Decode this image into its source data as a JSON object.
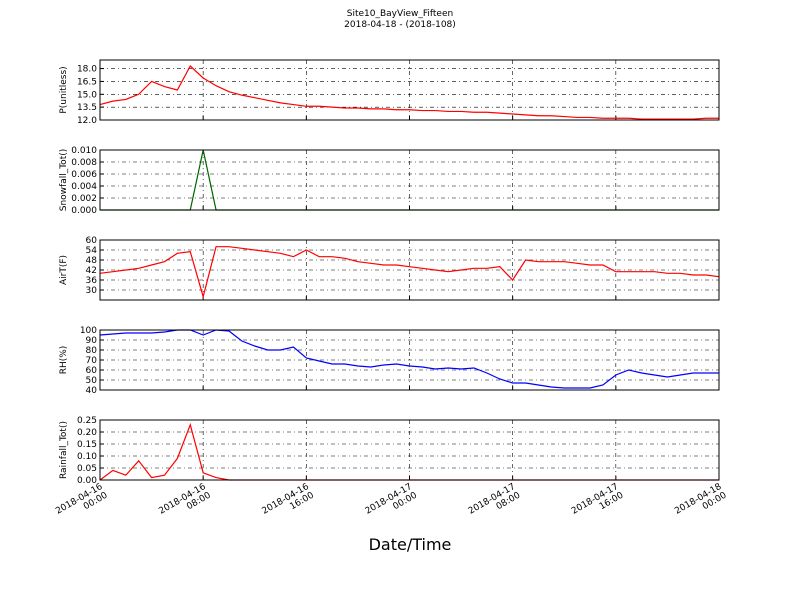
{
  "chart_data": [
    {
      "type": "line",
      "title": "Site10_BayView_Fifteen",
      "subtitle": "2018-04-18 - (2018-108)",
      "ylabel": "P(unitless)",
      "grid": true,
      "xlim": [
        "2018-04-16 00:00",
        "2018-04-18 00:00"
      ],
      "ylim": [
        12,
        19
      ],
      "yticks": [
        {
          "value": 12,
          "label": "12.0"
        },
        13.5,
        {
          "value": 15,
          "label": "15.0"
        },
        16.5,
        {
          "value": 18,
          "label": "18.0"
        }
      ],
      "x": [
        "2018-04-16 00:00",
        "2018-04-16 01:00",
        "2018-04-16 02:00",
        "2018-04-16 03:00",
        "2018-04-16 04:00",
        "2018-04-16 05:00",
        "2018-04-16 06:00",
        "2018-04-16 07:00",
        "2018-04-16 08:00",
        "2018-04-16 09:00",
        "2018-04-16 10:00",
        "2018-04-16 11:00",
        "2018-04-16 12:00",
        "2018-04-16 13:00",
        "2018-04-16 14:00",
        "2018-04-16 15:00",
        "2018-04-16 16:00",
        "2018-04-16 17:00",
        "2018-04-16 18:00",
        "2018-04-16 19:00",
        "2018-04-16 20:00",
        "2018-04-16 21:00",
        "2018-04-16 22:00",
        "2018-04-16 23:00",
        "2018-04-17 00:00",
        "2018-04-17 01:00",
        "2018-04-17 02:00",
        "2018-04-17 03:00",
        "2018-04-17 04:00",
        "2018-04-17 05:00",
        "2018-04-17 06:00",
        "2018-04-17 07:00",
        "2018-04-17 08:00",
        "2018-04-17 09:00",
        "2018-04-17 10:00",
        "2018-04-17 11:00",
        "2018-04-17 12:00",
        "2018-04-17 13:00",
        "2018-04-17 14:00",
        "2018-04-17 15:00",
        "2018-04-17 16:00",
        "2018-04-17 17:00",
        "2018-04-17 18:00",
        "2018-04-17 19:00",
        "2018-04-17 20:00",
        "2018-04-17 21:00",
        "2018-04-17 22:00",
        "2018-04-17 23:00",
        "2018-04-18 00:00"
      ],
      "series": [
        {
          "name": "P",
          "color": "#ff0000",
          "values": [
            13.8,
            14.2,
            14.4,
            15.0,
            16.5,
            15.9,
            15.5,
            18.3,
            16.9,
            16.0,
            15.3,
            14.9,
            14.6,
            14.3,
            14.0,
            13.8,
            13.6,
            13.6,
            13.5,
            13.4,
            13.4,
            13.3,
            13.3,
            13.2,
            13.2,
            13.1,
            13.1,
            13.0,
            13.0,
            12.9,
            12.9,
            12.8,
            12.7,
            12.6,
            12.5,
            12.5,
            12.4,
            12.3,
            12.3,
            12.2,
            12.2,
            12.2,
            12.1,
            12.1,
            12.1,
            12.1,
            12.1,
            12.2,
            12.2
          ]
        }
      ]
    },
    {
      "type": "line",
      "ylabel": "Snowfall_Tot()",
      "grid": true,
      "xlim": [
        "2018-04-16 00:00",
        "2018-04-18 00:00"
      ],
      "ylim": [
        0,
        0.01
      ],
      "yticks": [
        {
          "value": 0,
          "label": "0.000"
        },
        {
          "value": 0.002,
          "label": "0.002"
        },
        {
          "value": 0.004,
          "label": "0.004"
        },
        {
          "value": 0.006,
          "label": "0.006"
        },
        {
          "value": 0.008,
          "label": "0.008"
        },
        {
          "value": 0.01,
          "label": "0.010"
        }
      ],
      "x": [
        "2018-04-16 00:00",
        "2018-04-16 01:00",
        "2018-04-16 02:00",
        "2018-04-16 03:00",
        "2018-04-16 04:00",
        "2018-04-16 05:00",
        "2018-04-16 06:00",
        "2018-04-16 07:00",
        "2018-04-16 08:00",
        "2018-04-16 09:00",
        "2018-04-16 10:00",
        "2018-04-16 11:00",
        "2018-04-16 12:00",
        "2018-04-16 13:00",
        "2018-04-16 14:00",
        "2018-04-16 15:00",
        "2018-04-16 16:00",
        "2018-04-16 17:00",
        "2018-04-16 18:00",
        "2018-04-16 19:00",
        "2018-04-16 20:00",
        "2018-04-16 21:00",
        "2018-04-16 22:00",
        "2018-04-16 23:00",
        "2018-04-17 00:00",
        "2018-04-17 01:00",
        "2018-04-17 02:00",
        "2018-04-17 03:00",
        "2018-04-17 04:00",
        "2018-04-17 05:00",
        "2018-04-17 06:00",
        "2018-04-17 07:00",
        "2018-04-17 08:00",
        "2018-04-17 09:00",
        "2018-04-17 10:00",
        "2018-04-17 11:00",
        "2018-04-17 12:00",
        "2018-04-17 13:00",
        "2018-04-17 14:00",
        "2018-04-17 15:00",
        "2018-04-17 16:00",
        "2018-04-17 17:00",
        "2018-04-17 18:00",
        "2018-04-17 19:00",
        "2018-04-17 20:00",
        "2018-04-17 21:00",
        "2018-04-17 22:00",
        "2018-04-17 23:00",
        "2018-04-18 00:00"
      ],
      "series": [
        {
          "name": "Snowfall_Tot",
          "color": "#006400",
          "values": [
            0,
            0,
            0,
            0,
            0,
            0,
            0,
            0,
            0.01,
            0,
            0,
            0,
            0,
            0,
            0,
            0,
            0,
            0,
            0,
            0,
            0,
            0,
            0,
            0,
            0,
            0,
            0,
            0,
            0,
            0,
            0,
            0,
            0,
            0,
            0,
            0,
            0,
            0,
            0,
            0,
            0,
            0,
            0,
            0,
            0,
            0,
            0,
            0,
            0
          ]
        }
      ]
    },
    {
      "type": "line",
      "ylabel": "AirT(F)",
      "grid": true,
      "xlim": [
        "2018-04-16 00:00",
        "2018-04-18 00:00"
      ],
      "ylim": [
        24,
        60
      ],
      "yticks": [
        30,
        36,
        42,
        48,
        54,
        60
      ],
      "x": [
        "2018-04-16 00:00",
        "2018-04-16 01:00",
        "2018-04-16 02:00",
        "2018-04-16 03:00",
        "2018-04-16 04:00",
        "2018-04-16 05:00",
        "2018-04-16 06:00",
        "2018-04-16 07:00",
        "2018-04-16 08:00",
        "2018-04-16 09:00",
        "2018-04-16 10:00",
        "2018-04-16 11:00",
        "2018-04-16 12:00",
        "2018-04-16 13:00",
        "2018-04-16 14:00",
        "2018-04-16 15:00",
        "2018-04-16 16:00",
        "2018-04-16 17:00",
        "2018-04-16 18:00",
        "2018-04-16 19:00",
        "2018-04-16 20:00",
        "2018-04-16 21:00",
        "2018-04-16 22:00",
        "2018-04-16 23:00",
        "2018-04-17 00:00",
        "2018-04-17 01:00",
        "2018-04-17 02:00",
        "2018-04-17 03:00",
        "2018-04-17 04:00",
        "2018-04-17 05:00",
        "2018-04-17 06:00",
        "2018-04-17 07:00",
        "2018-04-17 08:00",
        "2018-04-17 09:00",
        "2018-04-17 10:00",
        "2018-04-17 11:00",
        "2018-04-17 12:00",
        "2018-04-17 13:00",
        "2018-04-17 14:00",
        "2018-04-17 15:00",
        "2018-04-17 16:00",
        "2018-04-17 17:00",
        "2018-04-17 18:00",
        "2018-04-17 19:00",
        "2018-04-17 20:00",
        "2018-04-17 21:00",
        "2018-04-17 22:00",
        "2018-04-17 23:00",
        "2018-04-18 00:00"
      ],
      "series": [
        {
          "name": "AirT",
          "color": "#ff0000",
          "values": [
            40,
            41,
            42,
            43,
            45,
            47,
            52,
            53,
            26,
            56,
            56,
            55,
            54,
            53,
            52,
            50,
            54,
            50,
            50,
            49,
            47,
            46,
            45,
            45,
            44,
            43,
            42,
            41,
            42,
            43,
            43,
            44,
            36,
            48,
            47,
            47,
            47,
            46,
            45,
            45,
            41,
            41,
            41,
            41,
            40,
            40,
            39,
            39,
            38
          ]
        }
      ]
    },
    {
      "type": "line",
      "ylabel": "RH(%)",
      "grid": true,
      "xlim": [
        "2018-04-16 00:00",
        "2018-04-18 00:00"
      ],
      "ylim": [
        40,
        100
      ],
      "yticks": [
        40,
        50,
        60,
        70,
        80,
        90,
        100
      ],
      "x": [
        "2018-04-16 00:00",
        "2018-04-16 01:00",
        "2018-04-16 02:00",
        "2018-04-16 03:00",
        "2018-04-16 04:00",
        "2018-04-16 05:00",
        "2018-04-16 06:00",
        "2018-04-16 07:00",
        "2018-04-16 08:00",
        "2018-04-16 09:00",
        "2018-04-16 10:00",
        "2018-04-16 11:00",
        "2018-04-16 12:00",
        "2018-04-16 13:00",
        "2018-04-16 14:00",
        "2018-04-16 15:00",
        "2018-04-16 16:00",
        "2018-04-16 17:00",
        "2018-04-16 18:00",
        "2018-04-16 19:00",
        "2018-04-16 20:00",
        "2018-04-16 21:00",
        "2018-04-16 22:00",
        "2018-04-16 23:00",
        "2018-04-17 00:00",
        "2018-04-17 01:00",
        "2018-04-17 02:00",
        "2018-04-17 03:00",
        "2018-04-17 04:00",
        "2018-04-17 05:00",
        "2018-04-17 06:00",
        "2018-04-17 07:00",
        "2018-04-17 08:00",
        "2018-04-17 09:00",
        "2018-04-17 10:00",
        "2018-04-17 11:00",
        "2018-04-17 12:00",
        "2018-04-17 13:00",
        "2018-04-17 14:00",
        "2018-04-17 15:00",
        "2018-04-17 16:00",
        "2018-04-17 17:00",
        "2018-04-17 18:00",
        "2018-04-17 19:00",
        "2018-04-17 20:00",
        "2018-04-17 21:00",
        "2018-04-17 22:00",
        "2018-04-17 23:00",
        "2018-04-18 00:00"
      ],
      "series": [
        {
          "name": "RH",
          "color": "#0000ff",
          "values": [
            95,
            96,
            97,
            97,
            97,
            98,
            100,
            100,
            95,
            100,
            99,
            89,
            84,
            80,
            80,
            83,
            72,
            69,
            66,
            66,
            64,
            63,
            65,
            66,
            64,
            63,
            61,
            62,
            61,
            62,
            57,
            51,
            47,
            47,
            45,
            43,
            42,
            42,
            42,
            45,
            55,
            60,
            57,
            55,
            53,
            55,
            57,
            57,
            57
          ]
        }
      ]
    },
    {
      "type": "line",
      "ylabel": "Rainfall_Tot()",
      "xlabel": "Date/Time",
      "grid": true,
      "xlim": [
        "2018-04-16 00:00",
        "2018-04-18 00:00"
      ],
      "ylim": [
        0,
        0.25
      ],
      "yticks": [
        {
          "value": 0,
          "label": "0.00"
        },
        0.05,
        {
          "value": 0.1,
          "label": "0.10"
        },
        0.15,
        {
          "value": 0.2,
          "label": "0.20"
        },
        0.25
      ],
      "xticks": [
        "2018-04-16 00:00",
        "2018-04-16 08:00",
        "2018-04-16 16:00",
        "2018-04-17 00:00",
        "2018-04-17 08:00",
        "2018-04-17 16:00",
        "2018-04-18 00:00"
      ],
      "x": [
        "2018-04-16 00:00",
        "2018-04-16 01:00",
        "2018-04-16 02:00",
        "2018-04-16 03:00",
        "2018-04-16 04:00",
        "2018-04-16 05:00",
        "2018-04-16 06:00",
        "2018-04-16 07:00",
        "2018-04-16 08:00",
        "2018-04-16 09:00",
        "2018-04-16 10:00",
        "2018-04-16 11:00",
        "2018-04-16 12:00",
        "2018-04-16 13:00",
        "2018-04-16 14:00",
        "2018-04-16 15:00",
        "2018-04-16 16:00",
        "2018-04-16 17:00",
        "2018-04-16 18:00",
        "2018-04-16 19:00",
        "2018-04-16 20:00",
        "2018-04-16 21:00",
        "2018-04-16 22:00",
        "2018-04-16 23:00",
        "2018-04-17 00:00",
        "2018-04-17 01:00",
        "2018-04-17 02:00",
        "2018-04-17 03:00",
        "2018-04-17 04:00",
        "2018-04-17 05:00",
        "2018-04-17 06:00",
        "2018-04-17 07:00",
        "2018-04-17 08:00",
        "2018-04-17 09:00",
        "2018-04-17 10:00",
        "2018-04-17 11:00",
        "2018-04-17 12:00",
        "2018-04-17 13:00",
        "2018-04-17 14:00",
        "2018-04-17 15:00",
        "2018-04-17 16:00",
        "2018-04-17 17:00",
        "2018-04-17 18:00",
        "2018-04-17 19:00",
        "2018-04-17 20:00",
        "2018-04-17 21:00",
        "2018-04-17 22:00",
        "2018-04-17 23:00",
        "2018-04-18 00:00"
      ],
      "series": [
        {
          "name": "Rainfall_Tot",
          "color": "#ff0000",
          "values": [
            0,
            0.04,
            0.02,
            0.08,
            0.01,
            0.02,
            0.09,
            0.23,
            0.03,
            0.01,
            0,
            0,
            0,
            0,
            0,
            0,
            0,
            0,
            0,
            0,
            0,
            0,
            0,
            0,
            0,
            0,
            0,
            0,
            0,
            0,
            0,
            0,
            0,
            0,
            0,
            0,
            0,
            0,
            0,
            0,
            0,
            0,
            0,
            0,
            0,
            0,
            0,
            0,
            0
          ]
        }
      ]
    }
  ]
}
